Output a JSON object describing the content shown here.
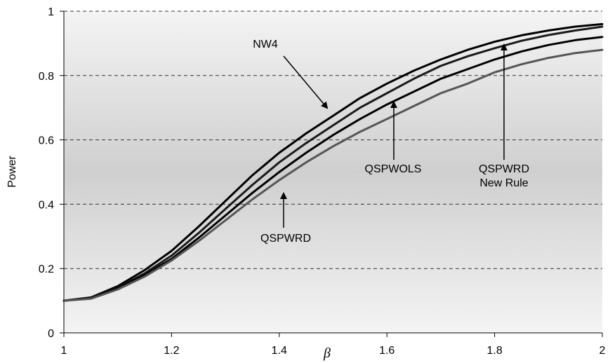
{
  "chart_data": {
    "type": "line",
    "title": "",
    "xlabel": "β",
    "ylabel": "Power",
    "xlim": [
      1,
      2
    ],
    "ylim": [
      0,
      1
    ],
    "x_ticks": [
      "1",
      "1.2",
      "1.4",
      "1.6",
      "1.8",
      "2"
    ],
    "y_ticks": [
      "0",
      "0.2",
      "0.4",
      "0.6",
      "0.8",
      "1"
    ],
    "grid": "horizontal dashed",
    "legend": "none",
    "x": [
      1.0,
      1.05,
      1.1,
      1.15,
      1.2,
      1.25,
      1.3,
      1.35,
      1.4,
      1.45,
      1.5,
      1.55,
      1.6,
      1.65,
      1.7,
      1.75,
      1.8,
      1.85,
      1.9,
      1.95,
      2.0
    ],
    "series": [
      {
        "name": "NW4",
        "color": "#000000",
        "values": [
          0.1,
          0.11,
          0.145,
          0.195,
          0.255,
          0.33,
          0.41,
          0.49,
          0.56,
          0.62,
          0.675,
          0.73,
          0.775,
          0.815,
          0.85,
          0.88,
          0.905,
          0.925,
          0.94,
          0.952,
          0.96
        ]
      },
      {
        "name": "QSPWOLS",
        "color": "#1a1a1a",
        "values": [
          0.1,
          0.11,
          0.14,
          0.185,
          0.24,
          0.31,
          0.385,
          0.46,
          0.53,
          0.59,
          0.645,
          0.7,
          0.745,
          0.79,
          0.83,
          0.86,
          0.885,
          0.908,
          0.926,
          0.94,
          0.952
        ]
      },
      {
        "name": "QSPWRD New Rule",
        "color": "#000000",
        "values": [
          0.1,
          0.108,
          0.138,
          0.18,
          0.23,
          0.295,
          0.365,
          0.435,
          0.5,
          0.56,
          0.615,
          0.665,
          0.71,
          0.75,
          0.79,
          0.82,
          0.85,
          0.875,
          0.895,
          0.91,
          0.92
        ]
      },
      {
        "name": "QSPWRD",
        "color": "#555555",
        "values": [
          0.1,
          0.106,
          0.135,
          0.175,
          0.225,
          0.285,
          0.35,
          0.415,
          0.475,
          0.53,
          0.58,
          0.625,
          0.665,
          0.705,
          0.745,
          0.775,
          0.81,
          0.835,
          0.855,
          0.87,
          0.88
        ]
      }
    ],
    "annotations": [
      {
        "lines": [
          "NW4"
        ],
        "series": "NW4"
      },
      {
        "lines": [
          "QSPWOLS"
        ],
        "series": "QSPWOLS"
      },
      {
        "lines": [
          "QSPWRD",
          "New Rule"
        ],
        "series": "QSPWRD New Rule"
      },
      {
        "lines": [
          "QSPWRD"
        ],
        "series": "QSPWRD"
      }
    ]
  }
}
